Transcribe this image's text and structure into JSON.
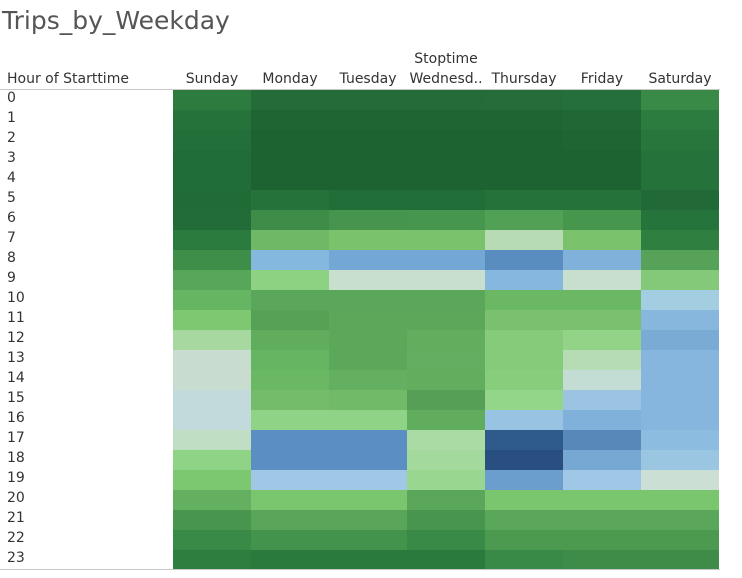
{
  "title": "Trips_by_Weekday",
  "chart_data": {
    "type": "heatmap",
    "title": "Trips_by_Weekday",
    "column_dimension": "Stoptime",
    "row_dimension": "Hour of Starttime",
    "columns": [
      "Sunday",
      "Monday",
      "Tuesday",
      "Wednesd..",
      "Thursday",
      "Friday",
      "Saturday"
    ],
    "rows": [
      "0",
      "1",
      "2",
      "3",
      "4",
      "5",
      "6",
      "7",
      "8",
      "9",
      "10",
      "11",
      "12",
      "13",
      "14",
      "15",
      "16",
      "17",
      "18",
      "19",
      "20",
      "21",
      "22",
      "23"
    ],
    "cells": [
      [
        "#2d7b3f",
        "#236c37",
        "#236c37",
        "#236c37",
        "#246d38",
        "#25703a",
        "#3a8a47"
      ],
      [
        "#25733a",
        "#1e6533",
        "#1e6533",
        "#1e6533",
        "#1e6533",
        "#1f6834",
        "#2c7c3f"
      ],
      [
        "#236f39",
        "#1d6332",
        "#1d6332",
        "#1d6332",
        "#1d6332",
        "#1e6533",
        "#28763c"
      ],
      [
        "#216d37",
        "#1d6332",
        "#1d6332",
        "#1d6332",
        "#1d6332",
        "#1d6332",
        "#25723a"
      ],
      [
        "#216d37",
        "#1d6332",
        "#1d6332",
        "#1d6332",
        "#1d6332",
        "#1d6332",
        "#25723a"
      ],
      [
        "#216b37",
        "#25723a",
        "#226e38",
        "#226e38",
        "#25723a",
        "#25733a",
        "#216a37"
      ],
      [
        "#216c37",
        "#3e8c48",
        "#46944d",
        "#47964e",
        "#52a055",
        "#47964e",
        "#25743b"
      ],
      [
        "#2b7a3e",
        "#6fb866",
        "#7bc26d",
        "#7bc26d",
        "#b7dbb2",
        "#7bc26d",
        "#2f7f40"
      ],
      [
        "#3e8e4a",
        "#84b8de",
        "#73a8d4",
        "#74a8d4",
        "#5a8dbf",
        "#7fb1da",
        "#56a258"
      ],
      [
        "#58a65a",
        "#8cd282",
        "#c9dfcd",
        "#c9dfcd",
        "#86b7de",
        "#c9dfcd",
        "#84c879"
      ],
      [
        "#66b563",
        "#5aa65a",
        "#5aa65a",
        "#5aa65a",
        "#6ab864",
        "#6ab864",
        "#a3cde0"
      ],
      [
        "#7dc870",
        "#55a257",
        "#5ba85b",
        "#5ba85b",
        "#7ac06f",
        "#7ac06f",
        "#88b7de"
      ],
      [
        "#a6d8a0",
        "#60ad5e",
        "#5ba85b",
        "#62ae5f",
        "#85cb79",
        "#92d388",
        "#7aabd5"
      ],
      [
        "#c8ddd0",
        "#66b563",
        "#5ba85b",
        "#63ae60",
        "#85cb79",
        "#b6dcb4",
        "#86b6dd"
      ],
      [
        "#c8ddd0",
        "#6ab864",
        "#64b061",
        "#62ae5f",
        "#87cd7b",
        "#c4ddd4",
        "#86b6dd"
      ],
      [
        "#c3dadc",
        "#74bc69",
        "#71bb68",
        "#559f57",
        "#93d689",
        "#9ac4e2",
        "#86b6dd"
      ],
      [
        "#c3dadc",
        "#8fd486",
        "#8fd486",
        "#60ad5e",
        "#99c3e2",
        "#7fb1da",
        "#86b6dd"
      ],
      [
        "#bfdec4",
        "#5b8ec2",
        "#5b8ec2",
        "#abdba4",
        "#2e5b8c",
        "#5888ba",
        "#8cbde0"
      ],
      [
        "#8fd486",
        "#5b8ec2",
        "#5b8ec2",
        "#a4d99e",
        "#284f80",
        "#77a8d3",
        "#9ac6e2"
      ],
      [
        "#7cc870",
        "#a0c8e6",
        "#a0c8e6",
        "#99d68f",
        "#6b9ecd",
        "#a0c8e6",
        "#cbdfd4"
      ],
      [
        "#64b061",
        "#7ac66f",
        "#7ac66f",
        "#5aa65a",
        "#7ac66f",
        "#7ac66f",
        "#7ac66f"
      ],
      [
        "#48964e",
        "#59a55a",
        "#59a55a",
        "#48964e",
        "#5aa65a",
        "#5aa65a",
        "#5aa65a"
      ],
      [
        "#3a8a47",
        "#44934c",
        "#44934c",
        "#3a8a47",
        "#4c9a50",
        "#4c9a50",
        "#4c9a50"
      ],
      [
        "#2e7e40",
        "#2a7a3e",
        "#2a7a3e",
        "#2a7a3e",
        "#3a8a47",
        "#3e8c48",
        "#3e8c48"
      ]
    ]
  }
}
